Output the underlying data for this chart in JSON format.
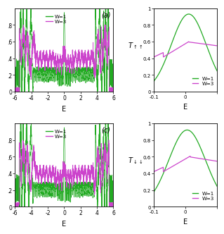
{
  "green_color": "#22aa22",
  "magenta_color": "#cc44cc",
  "bg_color": "#ffffff",
  "panel_a_label": "(a)",
  "panel_c_label": "(c)",
  "left_xlabel": "E",
  "right_xlabel": "E",
  "left_xlim": [
    -6,
    6
  ],
  "right_xlim": [
    -0.1,
    0.1
  ],
  "left_ylim": [
    0,
    1.0
  ],
  "right_ylim": [
    0,
    1.0
  ],
  "left_yticks": [
    0,
    0.2,
    0.4,
    0.6,
    0.8
  ],
  "left_xticks": [
    -6,
    -4,
    -2,
    0,
    2,
    4,
    6
  ],
  "legend_w1": "W=1",
  "legend_w3": "W=3"
}
